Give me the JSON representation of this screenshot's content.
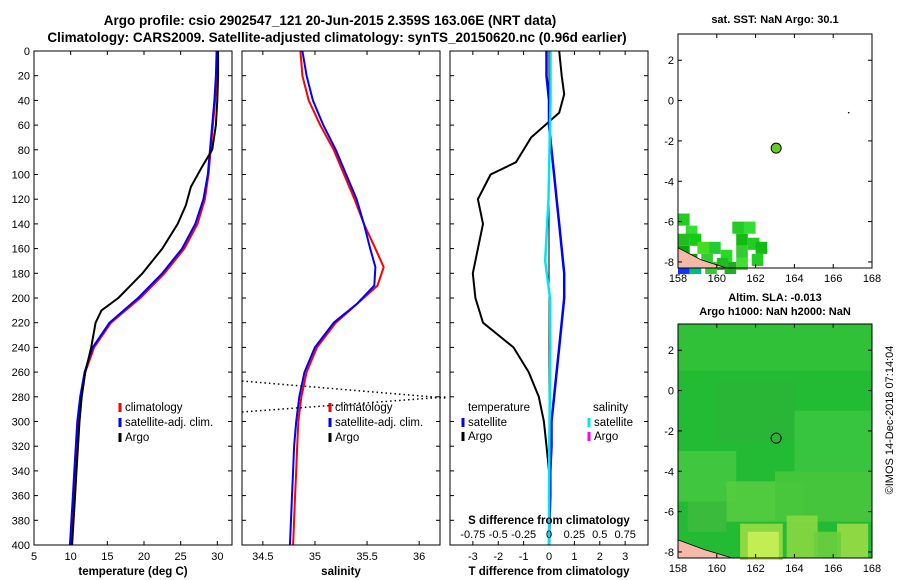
{
  "header": {
    "line1": "Argo profile: csio 2902547_121 20-Jun-2015 2.359S 163.06E (NRT data)",
    "line2": "Climatology: CARS2009. Satellite-adjusted climatology: synTS_20150620.nc (0.96d earlier)"
  },
  "footer": {
    "credit": "©IMOS 14-Dec-2018 07:14:04"
  },
  "colors": {
    "climatology": "#ff0000",
    "satellite": "#0000ff",
    "argo": "#000000",
    "satellite_salinity": "#00e5ee",
    "argo_salinity": "#ff00ff"
  },
  "chart_data": [
    {
      "type": "line",
      "id": "temperature",
      "xlabel": "temperature (deg C)",
      "ylabel": "",
      "xlim": [
        5,
        32
      ],
      "ylim": [
        400,
        0
      ],
      "xticks": [
        5,
        10,
        15,
        20,
        25,
        30
      ],
      "yticks": [
        0,
        20,
        40,
        60,
        80,
        100,
        120,
        140,
        160,
        180,
        200,
        220,
        240,
        260,
        280,
        300,
        320,
        340,
        360,
        380,
        400
      ],
      "legend": [
        "climatology",
        "satellite-adj. clim.",
        "Argo"
      ],
      "series": [
        {
          "name": "climatology",
          "color": "#ff0000",
          "points": [
            [
              30.0,
              0
            ],
            [
              29.9,
              20
            ],
            [
              29.7,
              40
            ],
            [
              29.4,
              60
            ],
            [
              29.1,
              80
            ],
            [
              28.8,
              100
            ],
            [
              28.3,
              120
            ],
            [
              27.3,
              140
            ],
            [
              25.5,
              160
            ],
            [
              22.8,
              180
            ],
            [
              19.5,
              200
            ],
            [
              15.5,
              220
            ],
            [
              13.2,
              240
            ],
            [
              12.0,
              260
            ],
            [
              11.4,
              280
            ],
            [
              11.0,
              300
            ],
            [
              10.8,
              320
            ],
            [
              10.6,
              340
            ],
            [
              10.4,
              360
            ],
            [
              10.2,
              380
            ],
            [
              10.0,
              400
            ]
          ]
        },
        {
          "name": "satellite-adj. clim.",
          "color": "#0000ff",
          "points": [
            [
              29.9,
              0
            ],
            [
              29.8,
              20
            ],
            [
              29.6,
              40
            ],
            [
              29.3,
              60
            ],
            [
              29.0,
              80
            ],
            [
              28.7,
              100
            ],
            [
              28.1,
              120
            ],
            [
              27.0,
              140
            ],
            [
              25.2,
              160
            ],
            [
              22.5,
              180
            ],
            [
              19.2,
              200
            ],
            [
              15.3,
              220
            ],
            [
              13.0,
              240
            ],
            [
              11.9,
              260
            ],
            [
              11.3,
              280
            ],
            [
              10.9,
              300
            ],
            [
              10.7,
              320
            ],
            [
              10.5,
              340
            ],
            [
              10.3,
              360
            ],
            [
              10.1,
              380
            ],
            [
              9.9,
              400
            ]
          ]
        },
        {
          "name": "Argo",
          "color": "#000000",
          "points": [
            [
              30.1,
              0
            ],
            [
              30.1,
              20
            ],
            [
              30.0,
              40
            ],
            [
              29.8,
              60
            ],
            [
              29.3,
              80
            ],
            [
              27.8,
              95
            ],
            [
              26.4,
              110
            ],
            [
              25.7,
              125
            ],
            [
              24.6,
              140
            ],
            [
              22.5,
              160
            ],
            [
              19.8,
              180
            ],
            [
              16.5,
              200
            ],
            [
              14.2,
              210
            ],
            [
              13.4,
              220
            ],
            [
              12.8,
              240
            ],
            [
              12.0,
              260
            ],
            [
              11.5,
              280
            ],
            [
              11.2,
              300
            ],
            [
              11.0,
              320
            ],
            [
              10.8,
              340
            ],
            [
              10.6,
              360
            ],
            [
              10.4,
              380
            ],
            [
              10.2,
              400
            ]
          ]
        }
      ]
    },
    {
      "type": "line",
      "id": "salinity",
      "xlabel": "salinity",
      "ylabel": "",
      "xlim": [
        34.3,
        36.2
      ],
      "ylim": [
        400,
        0
      ],
      "xticks": [
        34.5,
        35,
        35.5,
        36
      ],
      "legend": [
        "climatology",
        "satellite-adj. clim.",
        "Argo"
      ],
      "series": [
        {
          "name": "climatology",
          "color": "#ff0000",
          "points": [
            [
              34.86,
              0
            ],
            [
              34.88,
              20
            ],
            [
              34.94,
              40
            ],
            [
              35.05,
              60
            ],
            [
              35.18,
              80
            ],
            [
              35.28,
              100
            ],
            [
              35.38,
              120
            ],
            [
              35.47,
              140
            ],
            [
              35.58,
              160
            ],
            [
              35.66,
              175
            ],
            [
              35.6,
              190
            ],
            [
              35.4,
              205
            ],
            [
              35.2,
              220
            ],
            [
              35.02,
              240
            ],
            [
              34.92,
              260
            ],
            [
              34.87,
              280
            ],
            [
              34.84,
              300
            ],
            [
              34.83,
              320
            ],
            [
              34.82,
              340
            ],
            [
              34.81,
              360
            ],
            [
              34.8,
              380
            ],
            [
              34.79,
              400
            ]
          ]
        },
        {
          "name": "satellite-adj. clim.",
          "color": "#0000ff",
          "points": [
            [
              34.88,
              0
            ],
            [
              34.92,
              20
            ],
            [
              34.98,
              40
            ],
            [
              35.08,
              60
            ],
            [
              35.2,
              80
            ],
            [
              35.3,
              100
            ],
            [
              35.4,
              120
            ],
            [
              35.47,
              140
            ],
            [
              35.53,
              160
            ],
            [
              35.58,
              175
            ],
            [
              35.57,
              190
            ],
            [
              35.4,
              205
            ],
            [
              35.18,
              220
            ],
            [
              35.0,
              240
            ],
            [
              34.9,
              260
            ],
            [
              34.85,
              280
            ],
            [
              34.82,
              300
            ],
            [
              34.8,
              320
            ],
            [
              34.79,
              340
            ],
            [
              34.78,
              360
            ],
            [
              34.77,
              380
            ],
            [
              34.76,
              400
            ]
          ]
        }
      ]
    },
    {
      "type": "line",
      "id": "difference",
      "xlabel": "T difference from climatology",
      "xlabel2": "S difference from climatology",
      "ylabel": "",
      "xlim": [
        -3.9,
        3.9
      ],
      "ylim": [
        400,
        0
      ],
      "xticks": [
        -3,
        -2,
        -1,
        0,
        1,
        2,
        3
      ],
      "xticks2": [
        "-0.75",
        "-0.5",
        "-0.25",
        "0",
        "0.25",
        "0.5",
        "0.75"
      ],
      "legend_temperature_title": "temperature",
      "legend_temperature": [
        "satellite",
        "Argo"
      ],
      "legend_salinity_title": "salinity",
      "legend_salinity": [
        "satellite",
        "Argo"
      ],
      "series": [
        {
          "name": "temperature Argo",
          "color": "#000000",
          "points": [
            [
              0.4,
              0
            ],
            [
              0.5,
              20
            ],
            [
              0.6,
              35
            ],
            [
              0.4,
              50
            ],
            [
              -0.7,
              70
            ],
            [
              -1.3,
              90
            ],
            [
              -2.3,
              100
            ],
            [
              -2.8,
              120
            ],
            [
              -2.6,
              140
            ],
            [
              -2.8,
              160
            ],
            [
              -3.0,
              180
            ],
            [
              -2.9,
              200
            ],
            [
              -2.6,
              220
            ],
            [
              -1.4,
              240
            ],
            [
              -0.8,
              260
            ],
            [
              -0.4,
              280
            ],
            [
              -0.2,
              300
            ],
            [
              -0.1,
              320
            ],
            [
              0.0,
              340
            ],
            [
              0.0,
              360
            ],
            [
              0.0,
              380
            ],
            [
              0.0,
              400
            ]
          ]
        },
        {
          "name": "temperature satellite",
          "color": "#0000ff",
          "points": [
            [
              -0.1,
              0
            ],
            [
              -0.1,
              20
            ],
            [
              0.0,
              40
            ],
            [
              0.0,
              60
            ],
            [
              0.1,
              80
            ],
            [
              0.2,
              100
            ],
            [
              0.3,
              120
            ],
            [
              0.4,
              140
            ],
            [
              0.5,
              160
            ],
            [
              0.6,
              180
            ],
            [
              0.6,
              200
            ],
            [
              0.5,
              220
            ],
            [
              0.4,
              240
            ],
            [
              0.3,
              260
            ],
            [
              0.2,
              280
            ],
            [
              0.1,
              300
            ],
            [
              0.1,
              320
            ],
            [
              0.05,
              340
            ],
            [
              0.05,
              360
            ],
            [
              0.02,
              380
            ],
            [
              0.0,
              400
            ]
          ]
        },
        {
          "name": "salinity satellite",
          "color": "#00e5ee",
          "points": [
            [
              0.06,
              0
            ],
            [
              0.06,
              40
            ],
            [
              0.02,
              80
            ],
            [
              -0.02,
              120
            ],
            [
              -0.15,
              170
            ],
            [
              0.04,
              200
            ],
            [
              0.05,
              240
            ],
            [
              0.03,
              280
            ],
            [
              0.01,
              320
            ],
            [
              0.0,
              360
            ],
            [
              0.0,
              400
            ]
          ]
        }
      ]
    },
    {
      "type": "heatmap",
      "id": "sst",
      "title": "sat. SST: NaN Argo: 30.1",
      "xlim": [
        158,
        168
      ],
      "ylim": [
        -8.3,
        3.3
      ],
      "xticks": [
        158,
        160,
        162,
        164,
        166,
        168
      ],
      "yticks": [
        2,
        0,
        -2,
        -4,
        -6,
        -8
      ],
      "marker": [
        163.06,
        -2.359
      ]
    },
    {
      "type": "heatmap",
      "id": "sla",
      "title": "Altim. SLA: -0.013",
      "title2": "Argo h1000: NaN h2000: NaN",
      "xlim": [
        158,
        168
      ],
      "ylim": [
        -8.3,
        3.3
      ],
      "xticks": [
        158,
        160,
        162,
        164,
        166,
        168
      ],
      "yticks": [
        2,
        0,
        -2,
        -4,
        -6,
        -8
      ],
      "marker": [
        163.06,
        -2.359
      ]
    }
  ]
}
